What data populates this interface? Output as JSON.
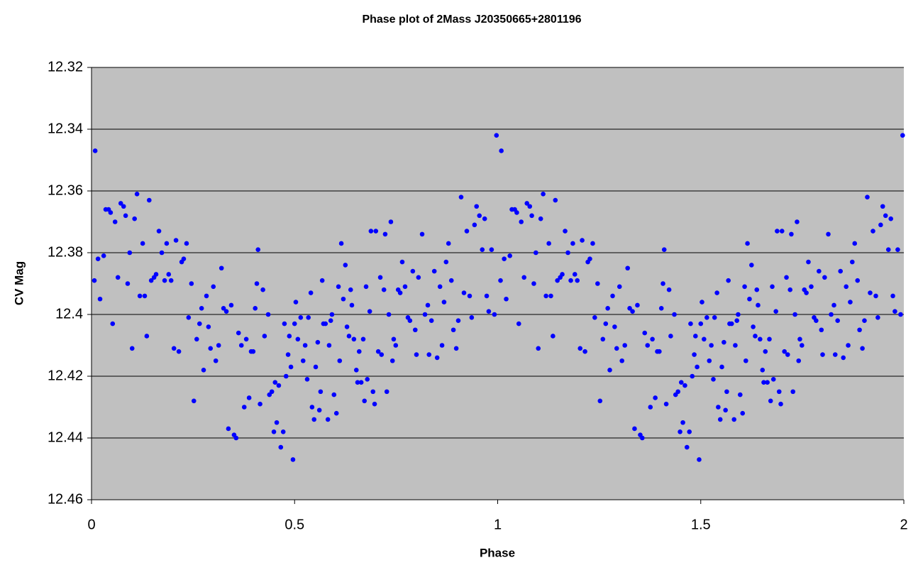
{
  "chart_data": {
    "type": "scatter",
    "title": "Phase plot of 2Mass J20350665+2801196",
    "x_label": "Phase",
    "y_label": "CV Mag",
    "xlim": [
      0,
      2
    ],
    "xticks": [
      0,
      0.5,
      1,
      1.5,
      2
    ],
    "ylim": [
      12.32,
      12.46
    ],
    "yticks": [
      12.32,
      12.34,
      12.36,
      12.38,
      12.4,
      12.42,
      12.44,
      12.46
    ],
    "y_inverted": true,
    "grid": true,
    "plot_background": "#c0c0c0",
    "series": [
      {
        "color": "#0000ff",
        "x": [
          0.007,
          0.009,
          0.016,
          0.021,
          0.03,
          0.035,
          0.042,
          0.047,
          0.052,
          0.058,
          0.065,
          0.072,
          0.079,
          0.084,
          0.089,
          0.094,
          0.1,
          0.106,
          0.112,
          0.119,
          0.126,
          0.131,
          0.136,
          0.142,
          0.147,
          0.154,
          0.159,
          0.166,
          0.173,
          0.18,
          0.185,
          0.19,
          0.196,
          0.203,
          0.208,
          0.215,
          0.222,
          0.227,
          0.234,
          0.239,
          0.246,
          0.252,
          0.259,
          0.266,
          0.271,
          0.276,
          0.283,
          0.288,
          0.293,
          0.3,
          0.306,
          0.313,
          0.32,
          0.325,
          0.332,
          0.337,
          0.344,
          0.351,
          0.356,
          0.362,
          0.369,
          0.376,
          0.381,
          0.388,
          0.393,
          0.398,
          0.403,
          0.407,
          0.41,
          0.415,
          0.422,
          0.426,
          0.435,
          0.438,
          0.444,
          0.449,
          0.452,
          0.456,
          0.461,
          0.466,
          0.472,
          0.475,
          0.479,
          0.484,
          0.487,
          0.491,
          0.496,
          0.5,
          0.503,
          0.508,
          0.515,
          0.521,
          0.526,
          0.531,
          0.534,
          0.54,
          0.543,
          0.548,
          0.552,
          0.557,
          0.561,
          0.564,
          0.568,
          0.571,
          0.576,
          0.582,
          0.585,
          0.589,
          0.592,
          0.597,
          0.603,
          0.608,
          0.611,
          0.615,
          0.62,
          0.625,
          0.629,
          0.634,
          0.638,
          0.641,
          0.646,
          0.652,
          0.655,
          0.659,
          0.664,
          0.669,
          0.672,
          0.676,
          0.679,
          0.685,
          0.688,
          0.693,
          0.697,
          0.7,
          0.706,
          0.711,
          0.714,
          0.72,
          0.723,
          0.727,
          0.732,
          0.737,
          0.741,
          0.744,
          0.749,
          0.755,
          0.76,
          0.765,
          0.772,
          0.779,
          0.784,
          0.791,
          0.797,
          0.8,
          0.805,
          0.814,
          0.821,
          0.828,
          0.831,
          0.837,
          0.844,
          0.851,
          0.858,
          0.863,
          0.868,
          0.873,
          0.879,
          0.886,
          0.891,
          0.898,
          0.903,
          0.91,
          0.917,
          0.924,
          0.931,
          0.936,
          0.943,
          0.948,
          0.955,
          0.962,
          0.968,
          0.973,
          0.978,
          0.985,
          0.992,
          0.997,
          1.007,
          1.009,
          1.016,
          1.021,
          1.03,
          1.035,
          1.042,
          1.047,
          1.052,
          1.058,
          1.065,
          1.072,
          1.079,
          1.084,
          1.089,
          1.094,
          1.1,
          1.106,
          1.112,
          1.119,
          1.126,
          1.131,
          1.136,
          1.142,
          1.147,
          1.154,
          1.159,
          1.166,
          1.173,
          1.18,
          1.185,
          1.19,
          1.196,
          1.203,
          1.208,
          1.215,
          1.222,
          1.227,
          1.234,
          1.239,
          1.246,
          1.252,
          1.259,
          1.266,
          1.271,
          1.276,
          1.283,
          1.288,
          1.293,
          1.3,
          1.306,
          1.313,
          1.32,
          1.325,
          1.332,
          1.337,
          1.344,
          1.351,
          1.356,
          1.362,
          1.369,
          1.376,
          1.381,
          1.388,
          1.393,
          1.398,
          1.403,
          1.407,
          1.41,
          1.415,
          1.422,
          1.426,
          1.435,
          1.438,
          1.444,
          1.449,
          1.452,
          1.456,
          1.461,
          1.466,
          1.472,
          1.475,
          1.479,
          1.484,
          1.487,
          1.491,
          1.496,
          1.5,
          1.503,
          1.508,
          1.515,
          1.521,
          1.526,
          1.531,
          1.534,
          1.54,
          1.543,
          1.548,
          1.552,
          1.557,
          1.561,
          1.564,
          1.568,
          1.571,
          1.576,
          1.582,
          1.585,
          1.589,
          1.592,
          1.597,
          1.603,
          1.608,
          1.611,
          1.615,
          1.62,
          1.625,
          1.629,
          1.634,
          1.638,
          1.641,
          1.646,
          1.652,
          1.655,
          1.659,
          1.664,
          1.669,
          1.672,
          1.676,
          1.679,
          1.685,
          1.688,
          1.693,
          1.697,
          1.7,
          1.706,
          1.711,
          1.714,
          1.72,
          1.723,
          1.727,
          1.732,
          1.737,
          1.741,
          1.744,
          1.749,
          1.755,
          1.76,
          1.765,
          1.772,
          1.779,
          1.784,
          1.791,
          1.797,
          1.8,
          1.805,
          1.814,
          1.821,
          1.828,
          1.831,
          1.837,
          1.844,
          1.851,
          1.858,
          1.863,
          1.868,
          1.873,
          1.879,
          1.886,
          1.891,
          1.898,
          1.903,
          1.91,
          1.917,
          1.924,
          1.931,
          1.936,
          1.943,
          1.948,
          1.955,
          1.962,
          1.968,
          1.973,
          1.978,
          1.985,
          1.992,
          1.997
        ],
        "values": [
          12.389,
          12.347,
          12.382,
          12.395,
          12.381,
          12.366,
          12.366,
          12.367,
          12.403,
          12.37,
          12.388,
          12.364,
          12.365,
          12.368,
          12.39,
          12.38,
          12.411,
          12.369,
          12.361,
          12.394,
          12.377,
          12.394,
          12.407,
          12.363,
          12.389,
          12.388,
          12.387,
          12.373,
          12.38,
          12.389,
          12.377,
          12.387,
          12.389,
          12.411,
          12.376,
          12.412,
          12.383,
          12.382,
          12.377,
          12.401,
          12.39,
          12.428,
          12.408,
          12.403,
          12.398,
          12.418,
          12.394,
          12.404,
          12.411,
          12.391,
          12.415,
          12.41,
          12.385,
          12.398,
          12.399,
          12.437,
          12.397,
          12.439,
          12.44,
          12.406,
          12.41,
          12.43,
          12.408,
          12.427,
          12.412,
          12.412,
          12.398,
          12.39,
          12.379,
          12.429,
          12.392,
          12.407,
          12.4,
          12.426,
          12.425,
          12.438,
          12.422,
          12.435,
          12.423,
          12.443,
          12.438,
          12.403,
          12.42,
          12.413,
          12.407,
          12.417,
          12.447,
          12.403,
          12.396,
          12.408,
          12.401,
          12.415,
          12.41,
          12.421,
          12.401,
          12.393,
          12.43,
          12.434,
          12.417,
          12.409,
          12.431,
          12.425,
          12.389,
          12.403,
          12.403,
          12.434,
          12.41,
          12.402,
          12.4,
          12.426,
          12.432,
          12.391,
          12.415,
          12.377,
          12.395,
          12.384,
          12.404,
          12.407,
          12.392,
          12.397,
          12.408,
          12.418,
          12.422,
          12.412,
          12.422,
          12.408,
          12.428,
          12.391,
          12.421,
          12.399,
          12.373,
          12.425,
          12.429,
          12.373,
          12.412,
          12.388,
          12.413,
          12.392,
          12.374,
          12.425,
          12.4,
          12.37,
          12.415,
          12.408,
          12.41,
          12.392,
          12.393,
          12.383,
          12.391,
          12.401,
          12.402,
          12.386,
          12.405,
          12.413,
          12.388,
          12.374,
          12.4,
          12.397,
          12.413,
          12.402,
          12.386,
          12.414,
          12.391,
          12.41,
          12.396,
          12.383,
          12.377,
          12.389,
          12.405,
          12.411,
          12.402,
          12.362,
          12.393,
          12.373,
          12.394,
          12.401,
          12.371,
          12.365,
          12.368,
          12.379,
          12.369,
          12.394,
          12.399,
          12.379,
          12.4,
          12.342,
          12.389,
          12.347,
          12.382,
          12.395,
          12.381,
          12.366,
          12.366,
          12.367,
          12.403,
          12.37,
          12.388,
          12.364,
          12.365,
          12.368,
          12.39,
          12.38,
          12.411,
          12.369,
          12.361,
          12.394,
          12.377,
          12.394,
          12.407,
          12.363,
          12.389,
          12.388,
          12.387,
          12.373,
          12.38,
          12.389,
          12.377,
          12.387,
          12.389,
          12.411,
          12.376,
          12.412,
          12.383,
          12.382,
          12.377,
          12.401,
          12.39,
          12.428,
          12.408,
          12.403,
          12.398,
          12.418,
          12.394,
          12.404,
          12.411,
          12.391,
          12.415,
          12.41,
          12.385,
          12.398,
          12.399,
          12.437,
          12.397,
          12.439,
          12.44,
          12.406,
          12.41,
          12.43,
          12.408,
          12.427,
          12.412,
          12.412,
          12.398,
          12.39,
          12.379,
          12.429,
          12.392,
          12.407,
          12.4,
          12.426,
          12.425,
          12.438,
          12.422,
          12.435,
          12.423,
          12.443,
          12.438,
          12.403,
          12.42,
          12.413,
          12.407,
          12.417,
          12.447,
          12.403,
          12.396,
          12.408,
          12.401,
          12.415,
          12.41,
          12.421,
          12.401,
          12.393,
          12.43,
          12.434,
          12.417,
          12.409,
          12.431,
          12.425,
          12.389,
          12.403,
          12.403,
          12.434,
          12.41,
          12.402,
          12.4,
          12.426,
          12.432,
          12.391,
          12.415,
          12.377,
          12.395,
          12.384,
          12.404,
          12.407,
          12.392,
          12.397,
          12.408,
          12.418,
          12.422,
          12.412,
          12.422,
          12.408,
          12.428,
          12.391,
          12.421,
          12.399,
          12.373,
          12.425,
          12.429,
          12.373,
          12.412,
          12.388,
          12.413,
          12.392,
          12.374,
          12.425,
          12.4,
          12.37,
          12.415,
          12.408,
          12.41,
          12.392,
          12.393,
          12.383,
          12.391,
          12.401,
          12.402,
          12.386,
          12.405,
          12.413,
          12.388,
          12.374,
          12.4,
          12.397,
          12.413,
          12.402,
          12.386,
          12.414,
          12.391,
          12.41,
          12.396,
          12.383,
          12.377,
          12.389,
          12.405,
          12.411,
          12.402,
          12.362,
          12.393,
          12.373,
          12.394,
          12.401,
          12.371,
          12.365,
          12.368,
          12.379,
          12.369,
          12.394,
          12.399,
          12.379,
          12.4,
          12.342
        ]
      }
    ]
  }
}
